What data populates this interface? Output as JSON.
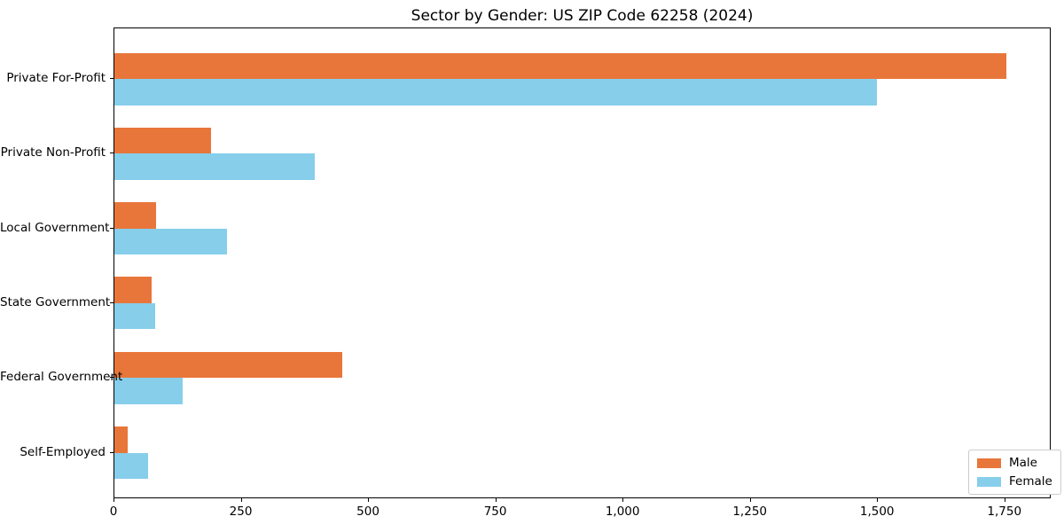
{
  "title": "Sector by Gender: US ZIP Code 62258 (2024)",
  "colors": {
    "male": "#E8763B",
    "female": "#87CEEB",
    "spine": "#000000",
    "legend_border": "#CCCCCC",
    "background": "#FFFFFF",
    "text": "#000000"
  },
  "chart_data": {
    "type": "bar",
    "orientation": "horizontal",
    "title": "Sector by Gender: US ZIP Code 62258 (2024)",
    "xlabel": "",
    "ylabel": "",
    "grid": false,
    "categories": [
      "Private For-Profit",
      "Private Non-Profit",
      "Local Government",
      "State Government",
      "Federal Government",
      "Self-Employed"
    ],
    "series": [
      {
        "name": "Male",
        "color": "#E8763B",
        "values": [
          1753,
          190,
          81,
          74,
          448,
          26
        ]
      },
      {
        "name": "Female",
        "color": "#87CEEB",
        "values": [
          1498,
          394,
          221,
          80,
          134,
          66
        ]
      }
    ],
    "xlim": [
      0,
      1841
    ],
    "x_ticks": [
      0,
      250,
      500,
      750,
      1000,
      1250,
      1500,
      1750
    ],
    "x_tick_labels": [
      "0",
      "250",
      "500",
      "750",
      "1,000",
      "1,250",
      "1,500",
      "1,750"
    ],
    "legend": {
      "position": "lower right",
      "entries": [
        "Male",
        "Female"
      ]
    }
  }
}
